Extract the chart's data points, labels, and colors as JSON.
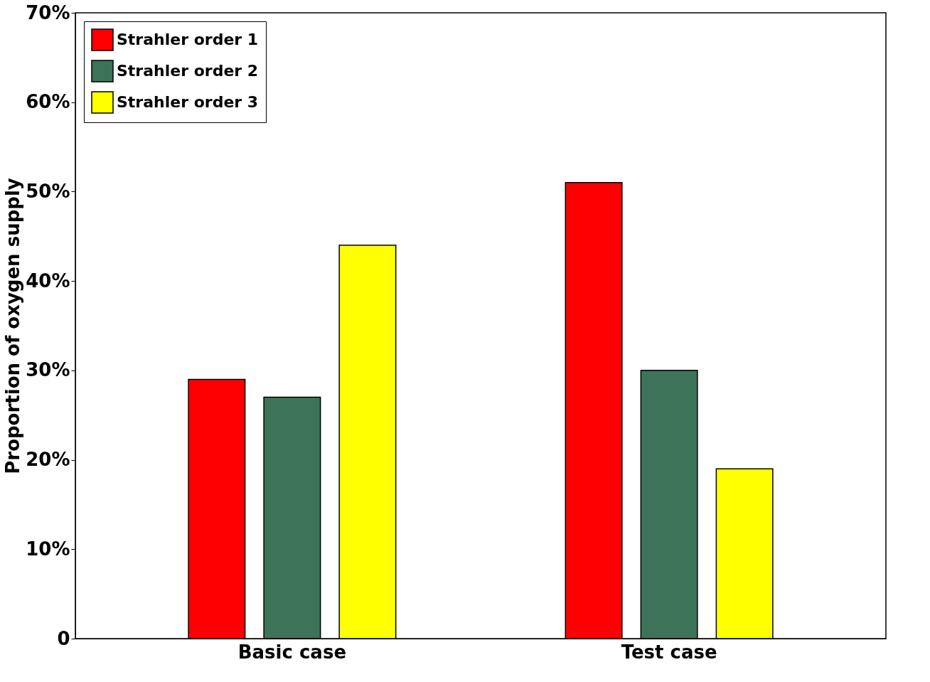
{
  "chart_data": {
    "type": "bar",
    "ylabel": "Proportion of oxygen supply",
    "categories": [
      "Basic case",
      "Test case"
    ],
    "series": [
      {
        "name": "Strahler order 1",
        "color": "#ff0000",
        "values": [
          29,
          51
        ]
      },
      {
        "name": "Strahler order 2",
        "color": "#3d7358",
        "values": [
          27,
          30
        ]
      },
      {
        "name": "Strahler order 3",
        "color": "#ffff00",
        "values": [
          44,
          19
        ]
      }
    ],
    "ylim": [
      0,
      70
    ],
    "yticks": [
      0,
      {
        "value": 10,
        "label": "10%"
      },
      {
        "value": 20,
        "label": "20%"
      },
      {
        "value": 30,
        "label": "30%"
      },
      {
        "value": 40,
        "label": "40%"
      },
      {
        "value": 50,
        "label": "50%"
      },
      {
        "value": 60,
        "label": "60%"
      },
      {
        "value": 70,
        "label": "70%"
      }
    ],
    "legend": "top left"
  }
}
